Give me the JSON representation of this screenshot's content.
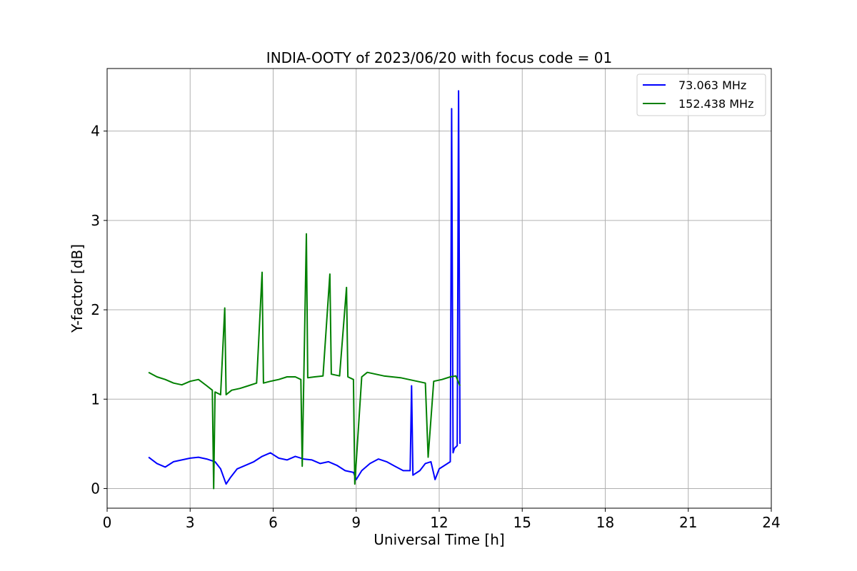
{
  "chart_data": {
    "type": "line",
    "title": "INDIA-OOTY of 2023/06/20 with focus code = 01",
    "xlabel": "Universal Time [h]",
    "ylabel": "Y-factor [dB]",
    "xlim": [
      0,
      24
    ],
    "ylim": [
      -0.22,
      4.7
    ],
    "xticks": [
      0,
      3,
      6,
      9,
      12,
      15,
      18,
      21,
      24
    ],
    "yticks": [
      0,
      1,
      2,
      3,
      4
    ],
    "grid": true,
    "legend_position": "top-right",
    "series": [
      {
        "name": "  73.063 MHz",
        "color": "#0000ff",
        "x": [
          1.5,
          1.8,
          2.1,
          2.4,
          2.7,
          3.0,
          3.3,
          3.6,
          3.9,
          4.1,
          4.3,
          4.45,
          4.7,
          5.0,
          5.3,
          5.6,
          5.9,
          6.2,
          6.5,
          6.8,
          7.1,
          7.4,
          7.7,
          8.0,
          8.3,
          8.6,
          8.9,
          9.0,
          9.2,
          9.5,
          9.8,
          10.1,
          10.4,
          10.7,
          10.95,
          11.0,
          11.05,
          11.3,
          11.5,
          11.7,
          11.85,
          12.0,
          12.2,
          12.4,
          12.45,
          12.5,
          12.55,
          12.65,
          12.7,
          12.75
        ],
        "y": [
          0.35,
          0.28,
          0.24,
          0.3,
          0.32,
          0.34,
          0.35,
          0.33,
          0.3,
          0.22,
          0.05,
          0.12,
          0.22,
          0.26,
          0.3,
          0.36,
          0.4,
          0.34,
          0.32,
          0.36,
          0.33,
          0.32,
          0.28,
          0.3,
          0.26,
          0.2,
          0.18,
          0.1,
          0.2,
          0.28,
          0.33,
          0.3,
          0.25,
          0.2,
          0.2,
          1.15,
          0.15,
          0.2,
          0.28,
          0.3,
          0.1,
          0.22,
          0.26,
          0.3,
          4.25,
          0.4,
          0.45,
          0.48,
          4.45,
          0.5
        ]
      },
      {
        "name": "152.438 MHz",
        "color": "#008000",
        "x": [
          1.5,
          1.8,
          2.1,
          2.4,
          2.7,
          3.0,
          3.3,
          3.6,
          3.8,
          3.85,
          3.9,
          4.1,
          4.25,
          4.3,
          4.5,
          4.8,
          5.1,
          5.4,
          5.6,
          5.65,
          5.9,
          6.2,
          6.5,
          6.8,
          7.0,
          7.05,
          7.2,
          7.25,
          7.5,
          7.8,
          8.05,
          8.1,
          8.4,
          8.65,
          8.7,
          8.9,
          8.95,
          9.2,
          9.4,
          9.7,
          10.0,
          10.3,
          10.6,
          10.9,
          11.2,
          11.5,
          11.6,
          11.8,
          12.1,
          12.4,
          12.6,
          12.75
        ],
        "y": [
          1.3,
          1.25,
          1.22,
          1.18,
          1.16,
          1.2,
          1.22,
          1.15,
          1.1,
          0.0,
          1.08,
          1.05,
          2.02,
          1.05,
          1.1,
          1.12,
          1.15,
          1.18,
          2.42,
          1.18,
          1.2,
          1.22,
          1.25,
          1.25,
          1.22,
          0.25,
          2.85,
          1.24,
          1.25,
          1.26,
          2.4,
          1.28,
          1.26,
          2.25,
          1.25,
          1.22,
          0.05,
          1.25,
          1.3,
          1.28,
          1.26,
          1.25,
          1.24,
          1.22,
          1.2,
          1.18,
          0.35,
          1.2,
          1.22,
          1.25,
          1.26,
          1.15
        ]
      }
    ]
  }
}
